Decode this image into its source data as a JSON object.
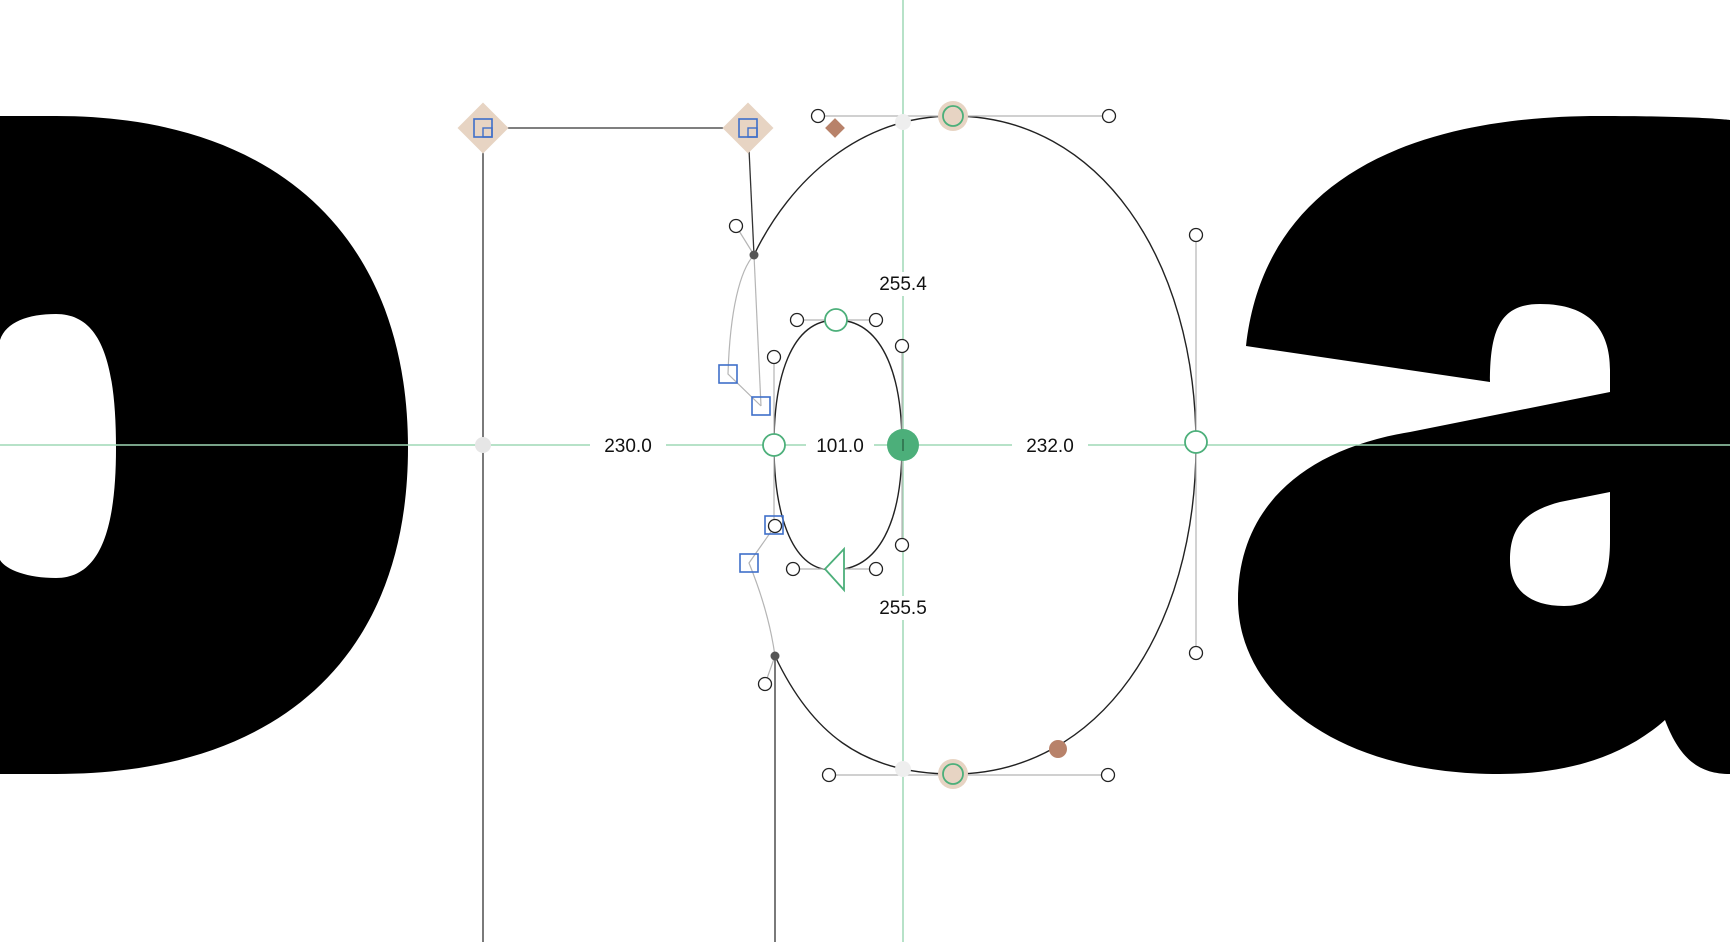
{
  "app": {
    "view": "glyph-edit-canvas"
  },
  "glyphs": {
    "left": {
      "name": "o"
    },
    "current": {
      "name": "0"
    },
    "right": {
      "name": "a"
    }
  },
  "measurements": {
    "left_distance": "230.0",
    "counter_width": "101.0",
    "right_distance": "232.0",
    "top_distance": "255.4",
    "bottom_distance": "255.5"
  },
  "colors": {
    "glyph_fill": "#000000",
    "outline": "#222222",
    "guide": "#9fd8b5",
    "node_green": "#4caf7a",
    "anchor_brown": "#b8826a",
    "anchor_halo": "#e7d4c3",
    "component_blue": "#3f6fc9",
    "handle_line": "#b5b5b5"
  },
  "icons": [
    "anchor-diamond-icon",
    "node-circle-icon",
    "start-triangle-icon",
    "handle-square-icon"
  ]
}
